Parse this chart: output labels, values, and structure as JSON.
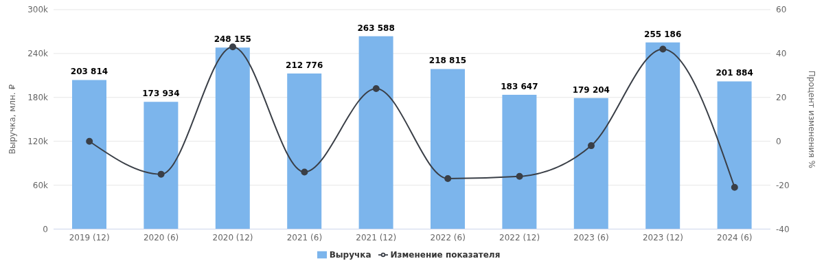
{
  "chart_data": {
    "type": "bar",
    "categories": [
      "2019 (12)",
      "2020 (6)",
      "2020 (12)",
      "2021 (6)",
      "2021 (12)",
      "2022 (6)",
      "2022 (12)",
      "2023 (6)",
      "2023 (12)",
      "2024 (6)"
    ],
    "series": [
      {
        "name": "Выручка",
        "color": "#7cb5ec",
        "values": [
          203814,
          173934,
          248155,
          212776,
          263588,
          218815,
          183647,
          179204,
          255186,
          201884
        ],
        "value_labels": [
          "203 814",
          "173 934",
          "248 155",
          "212 776",
          "263 588",
          "218 815",
          "183 647",
          "179 204",
          "255 186",
          "201 884"
        ]
      },
      {
        "name": "Изменение показателя",
        "type": "line",
        "axis": "y2",
        "color": "#3a3f47",
        "values": [
          0,
          -15,
          43,
          -14,
          24,
          -17,
          -16,
          -2,
          42,
          -21
        ]
      }
    ],
    "ylabel": "Выручка, млн. ₽",
    "y2label": "Процент изменения %",
    "ylim": [
      0,
      300000
    ],
    "yticks": [
      0,
      {
        "value": 60000,
        "label": "60k"
      },
      {
        "value": 120000,
        "label": "120k"
      },
      {
        "value": 180000,
        "label": "180k"
      },
      {
        "value": 240000,
        "label": "240k"
      },
      {
        "value": 300000,
        "label": "300k"
      }
    ],
    "y2lim": [
      -40,
      60
    ],
    "y2ticks": [
      -40,
      -20,
      0,
      20,
      40,
      60
    ],
    "grid": "y",
    "legend": "bottom",
    "marker": "circle",
    "line_style": "solid"
  }
}
